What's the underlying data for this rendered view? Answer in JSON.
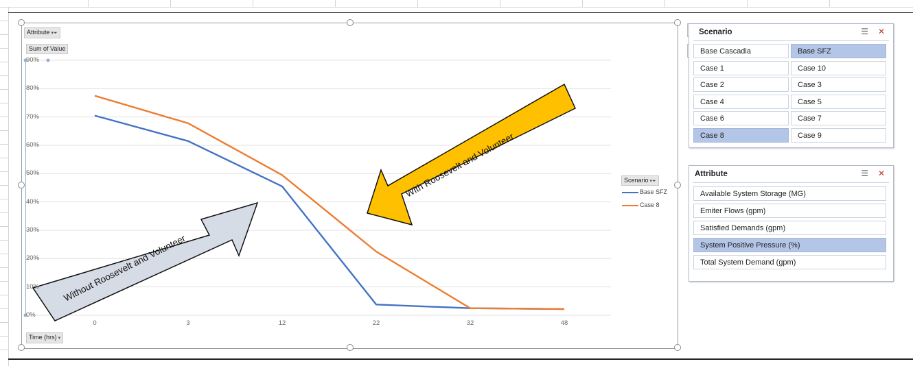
{
  "chart_data": {
    "type": "line",
    "x_field_button": "Time (hrs)",
    "filter_button": "Attribute",
    "value_button": "Sum of Value",
    "legend_field_button": "Scenario",
    "categories": [
      "0",
      "3",
      "12",
      "22",
      "32",
      "48"
    ],
    "series": [
      {
        "name": "Base SFZ",
        "color": "#4472c4",
        "values": [
          70.5,
          61.5,
          45.5,
          3.8,
          2.5,
          2.2
        ]
      },
      {
        "name": "Case 8",
        "color": "#ed7d31",
        "values": [
          77.5,
          67.8,
          49.5,
          22.5,
          2.5,
          2.2
        ]
      }
    ],
    "y_ticks": [
      "0%",
      "10%",
      "20%",
      "30%",
      "40%",
      "50%",
      "60%",
      "70%",
      "80%",
      "90%"
    ],
    "ylim": [
      0,
      90
    ],
    "grid": true,
    "legend_position": "right",
    "annotations": {
      "gray_arrow": "Without Roosevelt and Volunteer",
      "yellow_arrow": "With Roosevelt and Volunteer"
    }
  },
  "slicers": {
    "scenario": {
      "title": "Scenario",
      "items": [
        {
          "label": "Base Cascadia",
          "selected": false
        },
        {
          "label": "Base SFZ",
          "selected": true
        },
        {
          "label": "Case 1",
          "selected": false
        },
        {
          "label": "Case 10",
          "selected": false
        },
        {
          "label": "Case 2",
          "selected": false
        },
        {
          "label": "Case 3",
          "selected": false
        },
        {
          "label": "Case 4",
          "selected": false
        },
        {
          "label": "Case 5",
          "selected": false
        },
        {
          "label": "Case 6",
          "selected": false
        },
        {
          "label": "Case 7",
          "selected": false
        },
        {
          "label": "Case 8",
          "selected": true
        },
        {
          "label": "Case 9",
          "selected": false
        }
      ]
    },
    "attribute": {
      "title": "Attribute",
      "items": [
        {
          "label": "Available System Storage (MG)",
          "selected": false
        },
        {
          "label": "Emiter Flows (gpm)",
          "selected": false
        },
        {
          "label": "Satisfied Demands (gpm)",
          "selected": false
        },
        {
          "label": "System Positive Pressure (%)",
          "selected": true
        },
        {
          "label": "Total System Demand (gpm)",
          "selected": false
        }
      ]
    }
  },
  "icons": {
    "chart_elements": "plus-icon",
    "chart_styles": "brush-icon",
    "multiselect": "multiselect-icon",
    "clear_filter": "clear-filter-icon"
  }
}
